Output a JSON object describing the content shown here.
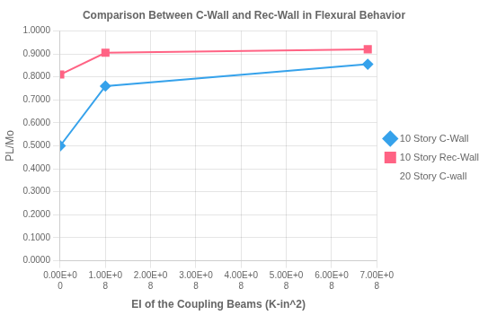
{
  "chart_data": {
    "type": "line",
    "title": "Comparison Between C-Wall and Rec-Wall in Flexural Behavior",
    "x_label": "EI of the Coupling Beams (K-in^2)",
    "y_label": "PL/Mo",
    "x": [
      0,
      100000000,
      680000000
    ],
    "series": [
      {
        "name": "10 Story C-Wall",
        "values": [
          0.5,
          0.76,
          0.855
        ],
        "marker": "diamond"
      },
      {
        "name": "10 Story Rec-Wall",
        "values": [
          0.81,
          0.905,
          0.92
        ],
        "marker": "square"
      },
      {
        "name": "20 Story C-wall",
        "values": [
          null,
          null,
          null
        ],
        "marker": "none",
        "line_style": "none"
      }
    ],
    "xlim": [
      0,
      700000000
    ],
    "xticks": [
      {
        "value": 0,
        "label": "0.00E+0\n0"
      },
      {
        "value": 100000000,
        "label": "1.00E+0\n8"
      },
      {
        "value": 200000000,
        "label": "2.00E+0\n8"
      },
      {
        "value": 300000000,
        "label": "3.00E+0\n8"
      },
      {
        "value": 400000000,
        "label": "4.00E+0\n8"
      },
      {
        "value": 500000000,
        "label": "5.00E+0\n8"
      },
      {
        "value": 600000000,
        "label": "6.00E+0\n8"
      },
      {
        "value": 700000000,
        "label": "7.00E+0\n8"
      }
    ],
    "ylim": [
      0.0,
      1.0
    ],
    "yticks": [
      {
        "value": 0.0,
        "label": "0.0000"
      },
      {
        "value": 0.1,
        "label": "0.1000"
      },
      {
        "value": 0.2,
        "label": "0.2000"
      },
      {
        "value": 0.3,
        "label": "0.3000"
      },
      {
        "value": 0.4,
        "label": "0.4000"
      },
      {
        "value": 0.5,
        "label": "0.5000"
      },
      {
        "value": 0.6,
        "label": "0.6000"
      },
      {
        "value": 0.7,
        "label": "0.7000"
      },
      {
        "value": 0.8,
        "label": "0.8000"
      },
      {
        "value": 0.9,
        "label": "0.9000"
      },
      {
        "value": 1.0,
        "label": "1.0000"
      }
    ],
    "grid": true,
    "legend": "right"
  }
}
